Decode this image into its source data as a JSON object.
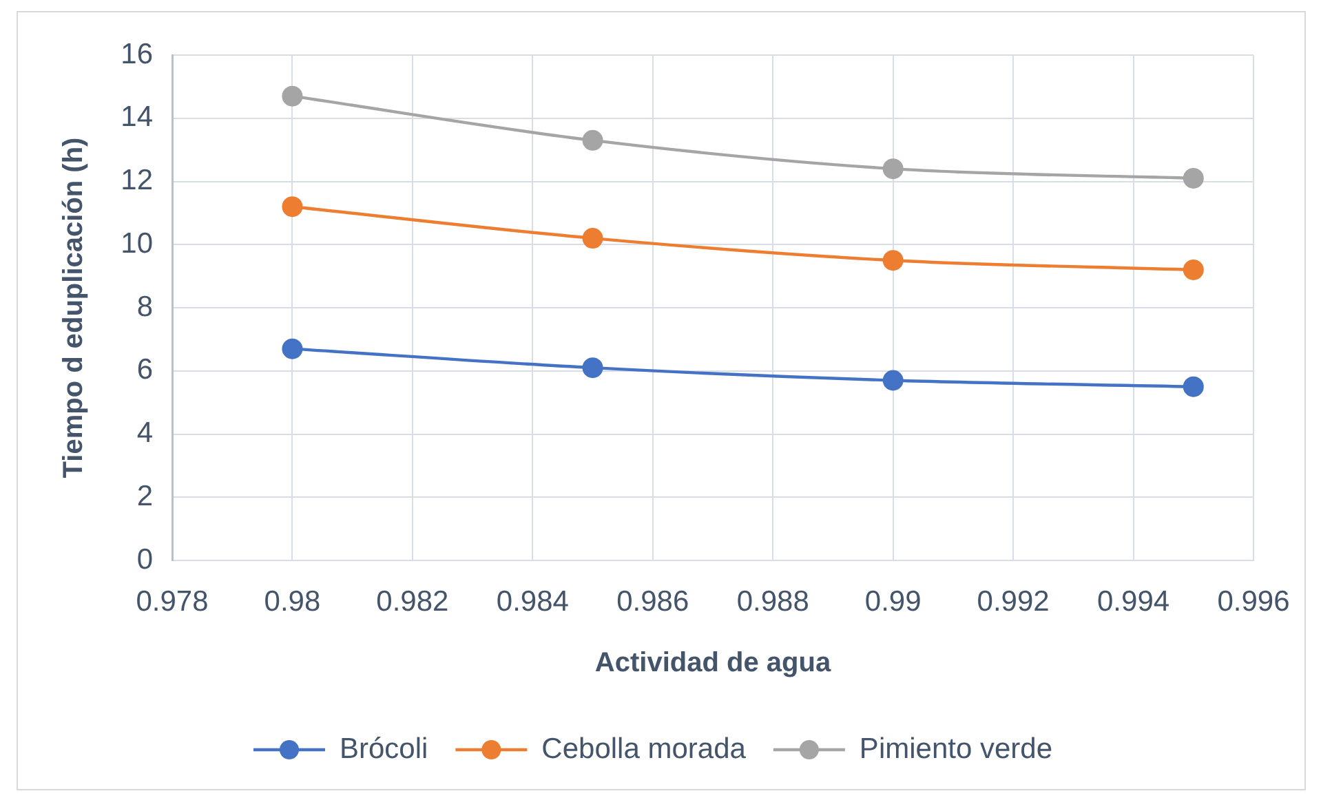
{
  "chart_data": {
    "type": "line",
    "xlabel": "Actividad de agua",
    "ylabel": "Tiempo d eduplicación (h)",
    "x": [
      0.98,
      0.985,
      0.99,
      0.995
    ],
    "series": [
      {
        "name": "Brócoli",
        "color": "#4472c4",
        "values": [
          6.7,
          6.1,
          5.7,
          5.5
        ]
      },
      {
        "name": "Cebolla morada",
        "color": "#ed7d31",
        "values": [
          11.2,
          10.2,
          9.5,
          9.2
        ]
      },
      {
        "name": "Pimiento verde",
        "color": "#a5a5a5",
        "values": [
          14.7,
          13.3,
          12.4,
          12.1
        ]
      }
    ],
    "xlim": [
      0.978,
      0.996
    ],
    "xticks": [
      0.978,
      0.98,
      0.982,
      0.984,
      0.986,
      0.988,
      0.99,
      0.992,
      0.994,
      0.996
    ],
    "ylim": [
      0,
      16
    ],
    "yticks": [
      0,
      2,
      4,
      6,
      8,
      10,
      12,
      14,
      16
    ],
    "grid": true,
    "legend": "bottom",
    "marker": "circle",
    "line_style": "solid"
  }
}
